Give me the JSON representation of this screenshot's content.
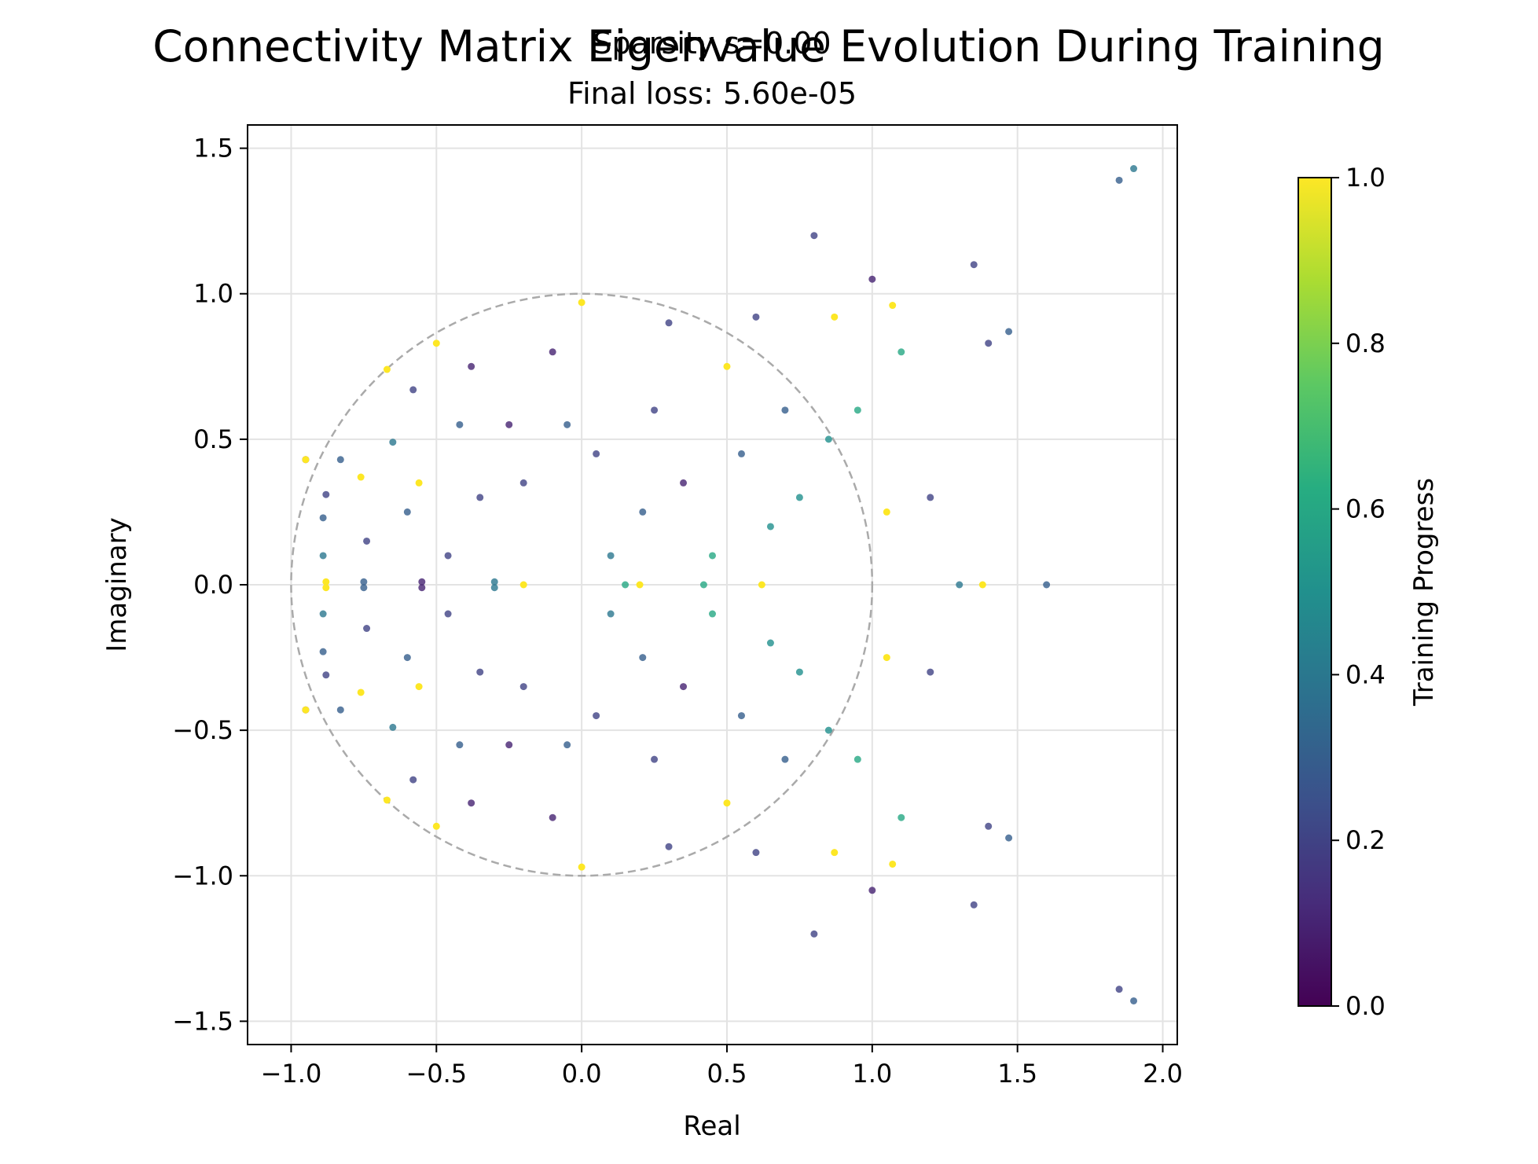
{
  "figure": {
    "suptitle": "Connectivity Matrix Eigenvalue Evolution During Training",
    "subtitle_line1": "Sparsity s=0.00",
    "subtitle_line2": "Final loss: 5.60e-05"
  },
  "chart_data": {
    "type": "scatter",
    "title": "Sparsity s=0.00\nFinal loss: 5.60e-05",
    "xlabel": "Real",
    "ylabel": "Imaginary",
    "xlim": [
      -1.15,
      2.05
    ],
    "ylim": [
      -1.58,
      1.58
    ],
    "xticks": [
      -1.0,
      -0.5,
      0.0,
      0.5,
      1.0,
      1.5,
      2.0
    ],
    "xtick_labels": [
      "−1.0",
      "−0.5",
      "0.0",
      "0.5",
      "1.0",
      "1.5",
      "2.0"
    ],
    "yticks": [
      -1.5,
      -1.0,
      -0.5,
      0.0,
      0.5,
      1.0,
      1.5
    ],
    "ytick_labels": [
      "−1.5",
      "−1.0",
      "−0.5",
      "0.0",
      "0.5",
      "1.0",
      "1.5"
    ],
    "grid": true,
    "unit_circle": {
      "center": [
        0,
        0
      ],
      "radius": 1.0,
      "style": "dashed",
      "color": "#aaaaaa"
    },
    "colormap": "viridis",
    "colorbar": {
      "label": "Training Progress",
      "range": [
        0.0,
        1.0
      ],
      "ticks": [
        0.0,
        0.2,
        0.4,
        0.6,
        0.8,
        1.0
      ],
      "tick_labels": [
        "0.0",
        "0.2",
        "0.4",
        "0.6",
        "0.8",
        "1.0"
      ]
    },
    "series": [
      {
        "points": [
          [
            -0.95,
            0.43,
            0.0
          ],
          [
            -0.95,
            0.43,
            1.0
          ],
          [
            -0.95,
            -0.43,
            0.0
          ],
          [
            -0.95,
            -0.43,
            1.0
          ],
          [
            -0.89,
            0.23,
            0.3
          ],
          [
            -0.89,
            0.1,
            0.4
          ],
          [
            -0.89,
            -0.1,
            0.4
          ],
          [
            -0.89,
            -0.23,
            0.3
          ],
          [
            -0.88,
            0.01,
            1.0
          ],
          [
            -0.88,
            -0.01,
            1.0
          ],
          [
            -0.88,
            0.31,
            0.2
          ],
          [
            -0.88,
            -0.31,
            0.2
          ],
          [
            -0.83,
            0.43,
            0.3
          ],
          [
            -0.83,
            -0.43,
            0.3
          ],
          [
            -0.76,
            0.37,
            1.0
          ],
          [
            -0.76,
            -0.37,
            1.0
          ],
          [
            -0.75,
            0.01,
            0.3
          ],
          [
            -0.75,
            -0.01,
            0.3
          ],
          [
            -0.74,
            0.15,
            0.2
          ],
          [
            -0.74,
            -0.15,
            0.2
          ],
          [
            -0.67,
            0.74,
            1.0
          ],
          [
            -0.67,
            -0.74,
            1.0
          ],
          [
            -0.65,
            0.49,
            0.4
          ],
          [
            -0.65,
            -0.49,
            0.4
          ],
          [
            -0.6,
            0.25,
            0.3
          ],
          [
            -0.6,
            -0.25,
            0.3
          ],
          [
            -0.58,
            0.67,
            0.2
          ],
          [
            -0.58,
            -0.67,
            0.2
          ],
          [
            -0.56,
            0.35,
            1.0
          ],
          [
            -0.56,
            -0.35,
            1.0
          ],
          [
            -0.55,
            0.01,
            0.1
          ],
          [
            -0.55,
            -0.01,
            0.1
          ],
          [
            -0.5,
            0.83,
            1.0
          ],
          [
            -0.5,
            -0.83,
            1.0
          ],
          [
            -0.46,
            0.1,
            0.2
          ],
          [
            -0.46,
            -0.1,
            0.2
          ],
          [
            -0.42,
            0.55,
            0.3
          ],
          [
            -0.42,
            -0.55,
            0.3
          ],
          [
            -0.38,
            0.75,
            0.1
          ],
          [
            -0.38,
            -0.75,
            0.1
          ],
          [
            -0.35,
            0.3,
            0.2
          ],
          [
            -0.35,
            -0.3,
            0.2
          ],
          [
            -0.3,
            0.01,
            0.4
          ],
          [
            -0.3,
            -0.01,
            0.4
          ],
          [
            -0.25,
            0.55,
            0.1
          ],
          [
            -0.25,
            -0.55,
            0.1
          ],
          [
            -0.2,
            0.0,
            1.0
          ],
          [
            -0.2,
            0.35,
            0.2
          ],
          [
            -0.2,
            -0.35,
            0.2
          ],
          [
            -0.1,
            0.8,
            0.1
          ],
          [
            -0.1,
            -0.8,
            0.1
          ],
          [
            -0.05,
            0.55,
            0.3
          ],
          [
            -0.05,
            -0.55,
            0.3
          ],
          [
            0.0,
            0.97,
            1.0
          ],
          [
            0.0,
            -0.97,
            1.0
          ],
          [
            0.05,
            0.45,
            0.2
          ],
          [
            0.05,
            -0.45,
            0.2
          ],
          [
            0.1,
            0.1,
            0.4
          ],
          [
            0.1,
            -0.1,
            0.4
          ],
          [
            0.15,
            0.0,
            0.6
          ],
          [
            0.2,
            0.0,
            1.0
          ],
          [
            0.21,
            0.25,
            0.3
          ],
          [
            0.21,
            -0.25,
            0.3
          ],
          [
            0.25,
            0.6,
            0.2
          ],
          [
            0.25,
            -0.6,
            0.2
          ],
          [
            0.3,
            0.9,
            0.2
          ],
          [
            0.3,
            -0.9,
            0.2
          ],
          [
            0.35,
            0.35,
            0.1
          ],
          [
            0.35,
            -0.35,
            0.1
          ],
          [
            0.42,
            0.0,
            0.6
          ],
          [
            0.45,
            0.1,
            0.6
          ],
          [
            0.45,
            -0.1,
            0.6
          ],
          [
            0.5,
            0.75,
            1.0
          ],
          [
            0.5,
            -0.75,
            1.0
          ],
          [
            0.55,
            0.45,
            0.3
          ],
          [
            0.55,
            -0.45,
            0.3
          ],
          [
            0.6,
            0.92,
            0.2
          ],
          [
            0.6,
            -0.92,
            0.2
          ],
          [
            0.62,
            0.0,
            1.0
          ],
          [
            0.65,
            0.2,
            0.5
          ],
          [
            0.65,
            -0.2,
            0.5
          ],
          [
            0.7,
            0.6,
            0.3
          ],
          [
            0.7,
            -0.6,
            0.3
          ],
          [
            0.75,
            0.3,
            0.5
          ],
          [
            0.75,
            -0.3,
            0.5
          ],
          [
            0.8,
            1.2,
            0.2
          ],
          [
            0.8,
            -1.2,
            0.2
          ],
          [
            0.85,
            0.5,
            0.5
          ],
          [
            0.85,
            -0.5,
            0.5
          ],
          [
            0.87,
            0.92,
            1.0
          ],
          [
            0.87,
            -0.92,
            1.0
          ],
          [
            0.95,
            0.6,
            0.6
          ],
          [
            0.95,
            -0.6,
            0.6
          ],
          [
            1.0,
            1.05,
            0.1
          ],
          [
            1.0,
            -1.05,
            0.1
          ],
          [
            1.05,
            0.25,
            1.0
          ],
          [
            1.05,
            -0.25,
            1.0
          ],
          [
            1.07,
            0.96,
            1.0
          ],
          [
            1.07,
            -0.96,
            1.0
          ],
          [
            1.1,
            0.8,
            0.6
          ],
          [
            1.1,
            -0.8,
            0.6
          ],
          [
            1.2,
            0.3,
            0.2
          ],
          [
            1.2,
            -0.3,
            0.2
          ],
          [
            1.3,
            0.0,
            0.4
          ],
          [
            1.38,
            0.0,
            1.0
          ],
          [
            1.35,
            1.1,
            0.2
          ],
          [
            1.35,
            -1.1,
            0.2
          ],
          [
            1.4,
            0.83,
            0.2
          ],
          [
            1.4,
            -0.83,
            0.2
          ],
          [
            1.47,
            0.87,
            0.3
          ],
          [
            1.47,
            -0.87,
            0.3
          ],
          [
            1.6,
            0.0,
            0.3
          ],
          [
            1.85,
            1.39,
            0.3
          ],
          [
            1.9,
            1.43,
            0.4
          ],
          [
            1.85,
            -1.39,
            0.2
          ],
          [
            1.9,
            -1.43,
            0.3
          ]
        ]
      }
    ]
  }
}
